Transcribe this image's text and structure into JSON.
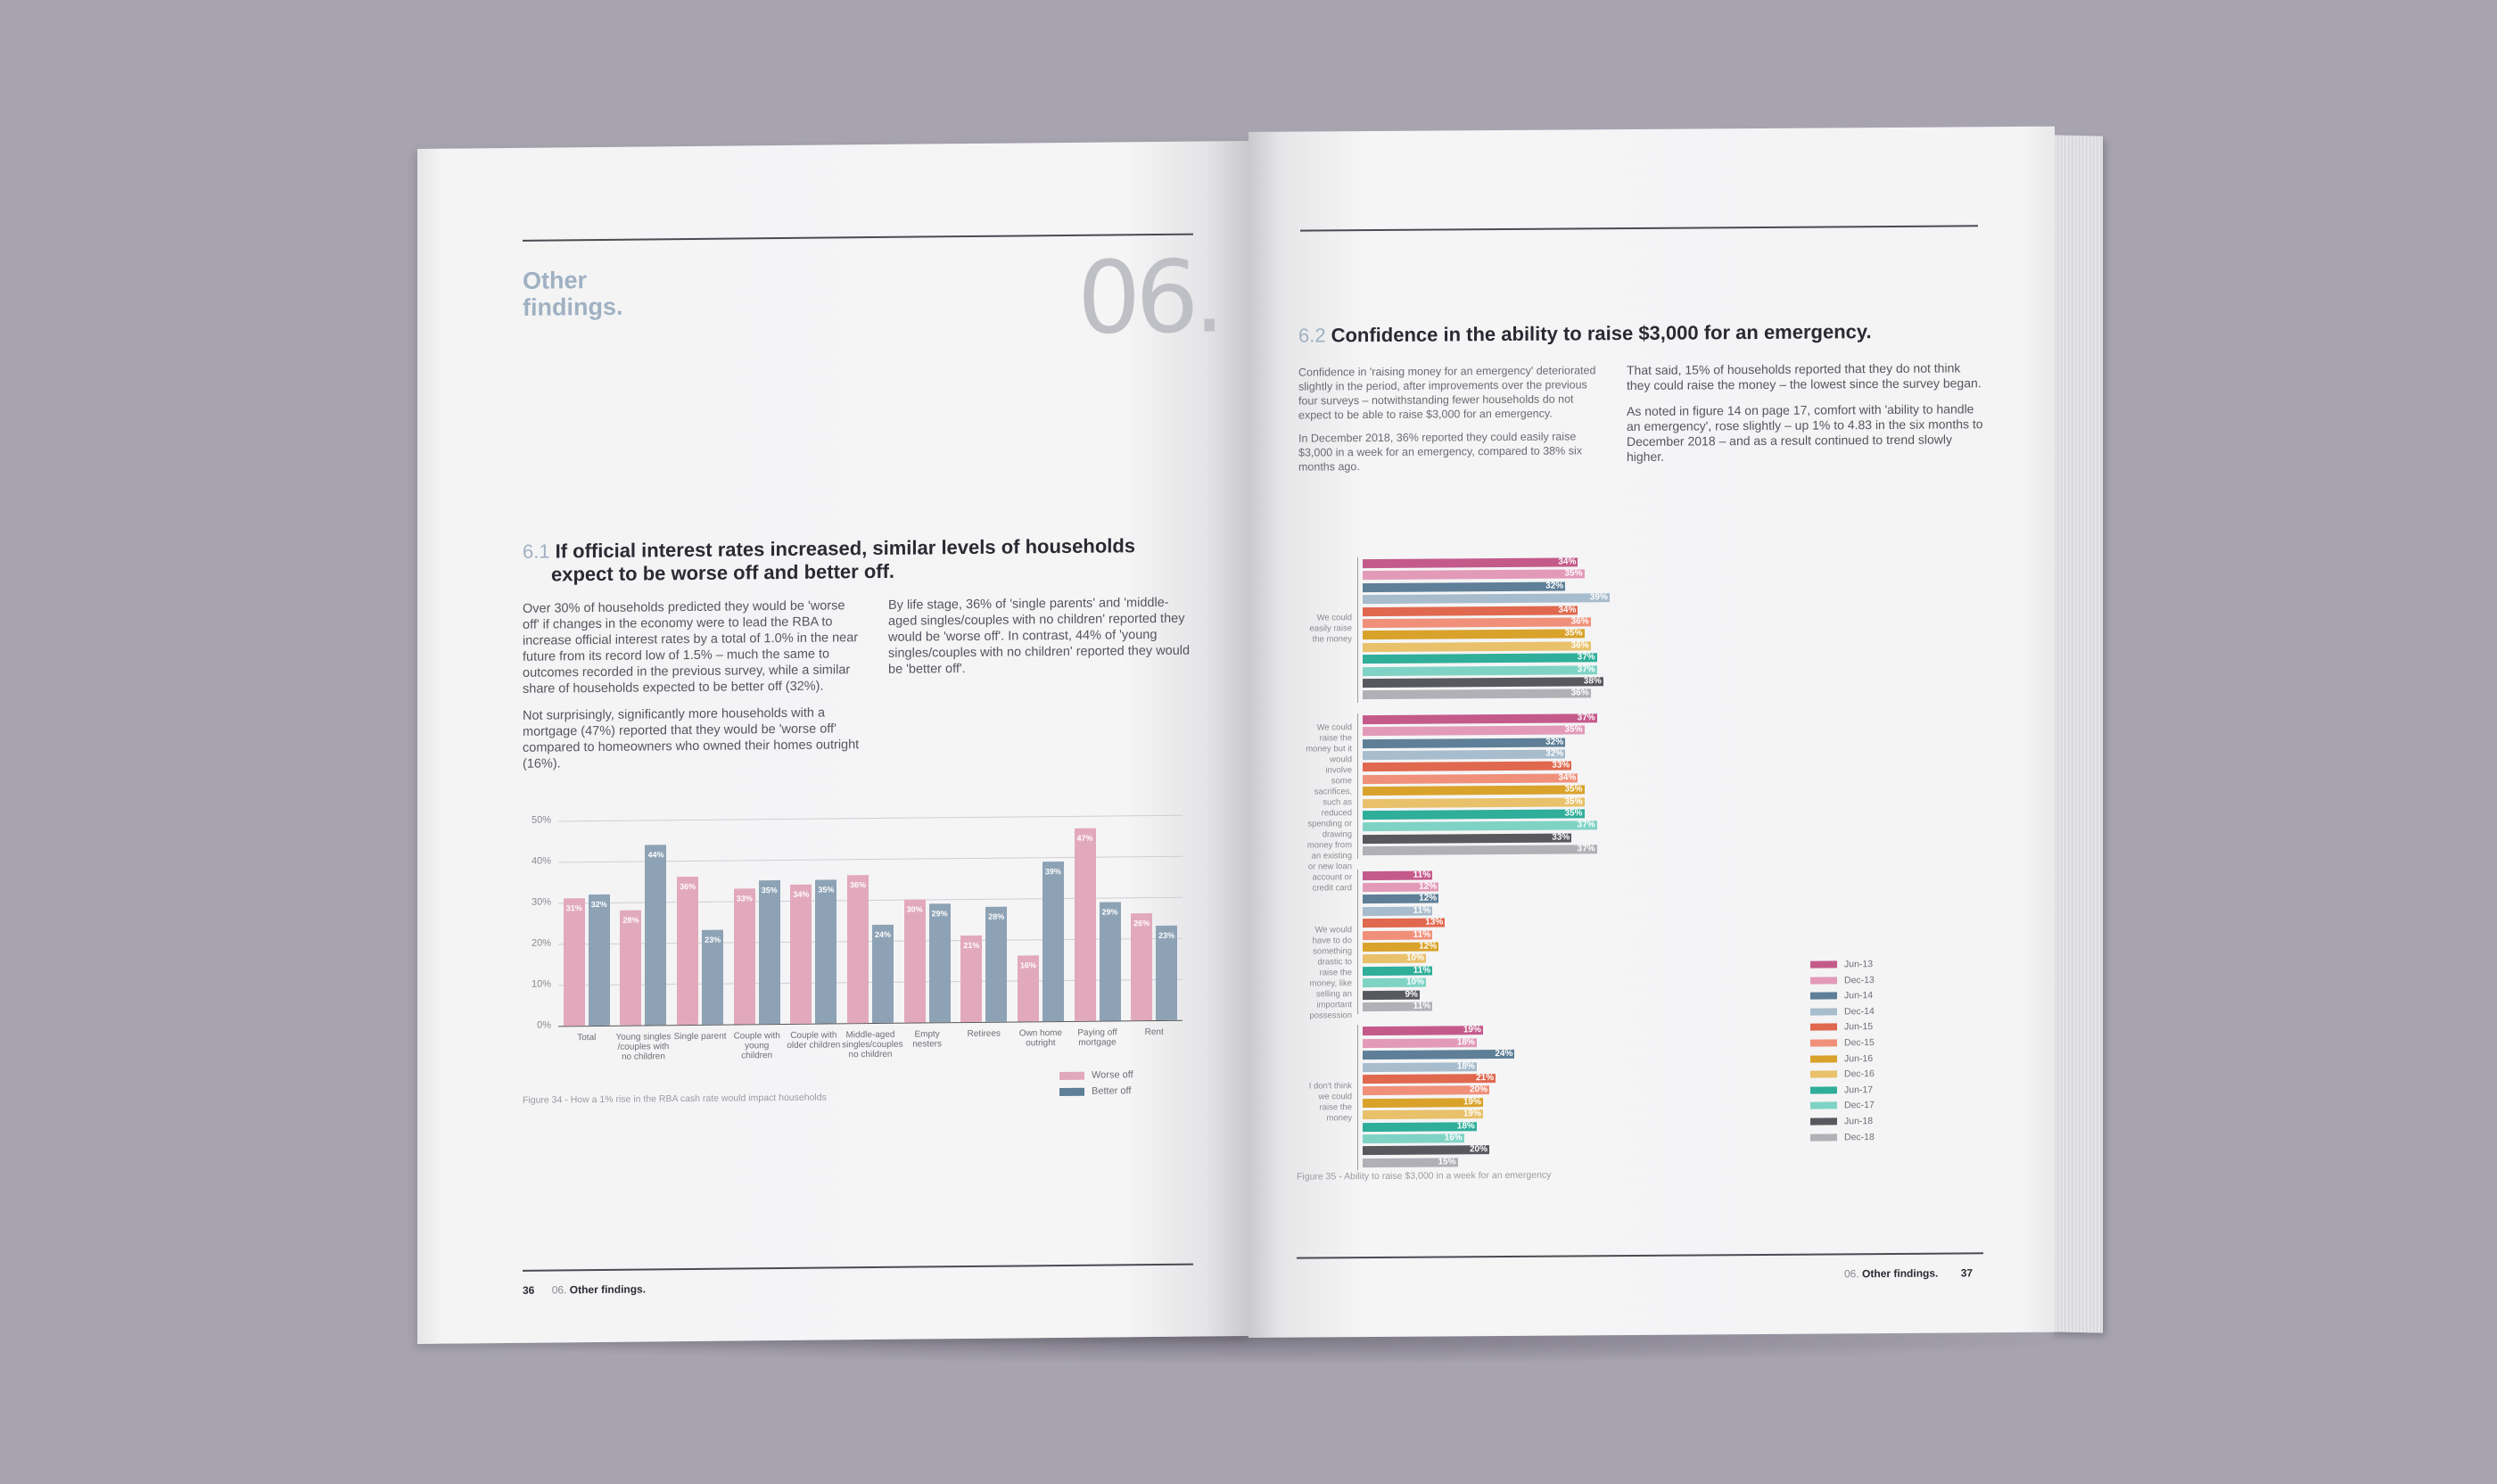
{
  "left_page": {
    "section_label": [
      "Other",
      "findings."
    ],
    "section_number": "06.",
    "heading_number": "6.1",
    "heading_line1": "If official interest rates increased, similar levels of households",
    "heading_line2": "expect to be worse off and better off.",
    "col1_p1": "Over 30% of households predicted they would be 'worse off' if changes in the economy were to lead the RBA to increase official interest rates by a total of 1.0% in the near future from its record low of 1.5% – much the same to outcomes recorded in the previous survey, while a similar share of households expected to be better off (32%).",
    "col1_p2": "Not surprisingly, significantly more households with a mortgage (47%) reported that they would be 'worse off' compared to homeowners who owned their homes outright (16%).",
    "col2_p1": "By life stage, 36% of 'single parents' and 'middle-aged singles/couples with no children' reported they would be 'worse off'. In contrast, 44% of 'young singles/couples with no children' reported they would be 'better off'.",
    "figure_caption": "Figure 34 - How a 1% rise in the RBA cash rate would impact households",
    "footer_page": "36",
    "footer_section_num": "06.",
    "footer_section": "Other findings."
  },
  "right_page": {
    "heading_number": "6.2",
    "heading": "Confidence in the ability to raise $3,000 for an emergency.",
    "col1_p1": "Confidence in 'raising money for an emergency' deteriorated slightly in the period, after improvements over the previous four surveys – notwithstanding fewer households do not expect to be able to raise $3,000 for an emergency.",
    "col1_p2": "In December 2018, 36% reported they could easily raise $3,000 in a week for an emergency, compared to 38% six months ago.",
    "col2_p1": "That said, 15% of households reported that they do not think they could raise the money – the lowest since the survey began.",
    "col2_p2": "As noted in figure 14 on page 17, comfort with 'ability to handle an emergency', rose slightly – up 1% to 4.83 in the six months to December 2018 – and as a result continued to trend slowly higher.",
    "figure_caption": "Figure 35 - Ability to raise $3,000 in a week for an emergency",
    "footer_section_num": "06.",
    "footer_section": "Other findings.",
    "footer_page": "37"
  },
  "chart_data": [
    {
      "type": "bar",
      "categories": [
        "Total",
        "Young singles /couples with no children",
        "Single parent",
        "Couple with young children",
        "Couple with older children",
        "Middle-aged singles/couples no children",
        "Empty nesters",
        "Retirees",
        "Own home outright",
        "Paying off mortgage",
        "Rent"
      ],
      "series": [
        {
          "name": "Worse off",
          "color": "#e2a9bd",
          "values": [
            31,
            28,
            36,
            33,
            34,
            36,
            30,
            21,
            16,
            47,
            26
          ],
          "labels": [
            "31%",
            "28%",
            "36%",
            "33%",
            "34%",
            "36%",
            "30%",
            "21%",
            "16%",
            "47%",
            "26%"
          ]
        },
        {
          "name": "Better off",
          "color": "#8da2b5",
          "values": [
            32,
            44,
            23,
            35,
            35,
            24,
            29,
            28,
            39,
            29,
            23
          ],
          "labels": [
            "32%",
            "44%",
            "23%",
            "35%",
            "35%",
            "24%",
            "29%",
            "28%",
            "39%",
            "29%",
            "23%"
          ]
        }
      ],
      "ylim": [
        0,
        50
      ],
      "yticks": [
        "0%",
        "10%",
        "20%",
        "30%",
        "40%",
        "50%"
      ],
      "grid": true,
      "legend": "bottom-right"
    },
    {
      "type": "bar",
      "orientation": "horizontal",
      "series_names": [
        "Jun-13",
        "Dec-13",
        "Jun-14",
        "Dec-14",
        "Jun-15",
        "Dec-15",
        "Jun-16",
        "Dec-16",
        "Jun-17",
        "Dec-17",
        "Jun-18",
        "Dec-18"
      ],
      "colors": [
        "#c45a8a",
        "#e29ab8",
        "#5e7f97",
        "#a7bccc",
        "#e0684e",
        "#f0907a",
        "#d9a22b",
        "#e8c16a",
        "#2fae9a",
        "#7fd3c4",
        "#58585f",
        "#b0b0b6"
      ],
      "groups": [
        {
          "label": "We could easily raise the money",
          "values": [
            34,
            35,
            32,
            39,
            34,
            36,
            35,
            36,
            37,
            37,
            38,
            36
          ],
          "labels": [
            "34%",
            "35%",
            "32%",
            "39%",
            "34%",
            "36%",
            "35%",
            "36%",
            "37%",
            "37%",
            "38%",
            "36%"
          ]
        },
        {
          "label": "We could raise the money but it would involve some sacrifices, such as reduced spending or drawing money from an existing or new loan account or credit card",
          "values": [
            37,
            35,
            32,
            32,
            33,
            34,
            35,
            35,
            35,
            37,
            33,
            37
          ],
          "labels": [
            "37%",
            "35%",
            "32%",
            "32%",
            "33%",
            "34%",
            "35%",
            "35%",
            "35%",
            "37%",
            "33%",
            "37%"
          ]
        },
        {
          "label": "We would have to do something drastic to raise the money, like selling an important possession",
          "values": [
            11,
            12,
            12,
            11,
            13,
            11,
            12,
            10,
            11,
            10,
            9,
            11
          ],
          "labels": [
            "11%",
            "12%",
            "12%",
            "11%",
            "13%",
            "11%",
            "12%",
            "10%",
            "11%",
            "10%",
            "9%",
            "11%"
          ]
        },
        {
          "label": "I don't think we could raise the money",
          "values": [
            19,
            18,
            24,
            18,
            21,
            20,
            19,
            19,
            18,
            16,
            20,
            15
          ],
          "labels": [
            "19%",
            "18%",
            "24%",
            "18%",
            "21%",
            "20%",
            "19%",
            "19%",
            "18%",
            "16%",
            "20%",
            "15%"
          ]
        }
      ],
      "legend": "bottom-right"
    }
  ]
}
